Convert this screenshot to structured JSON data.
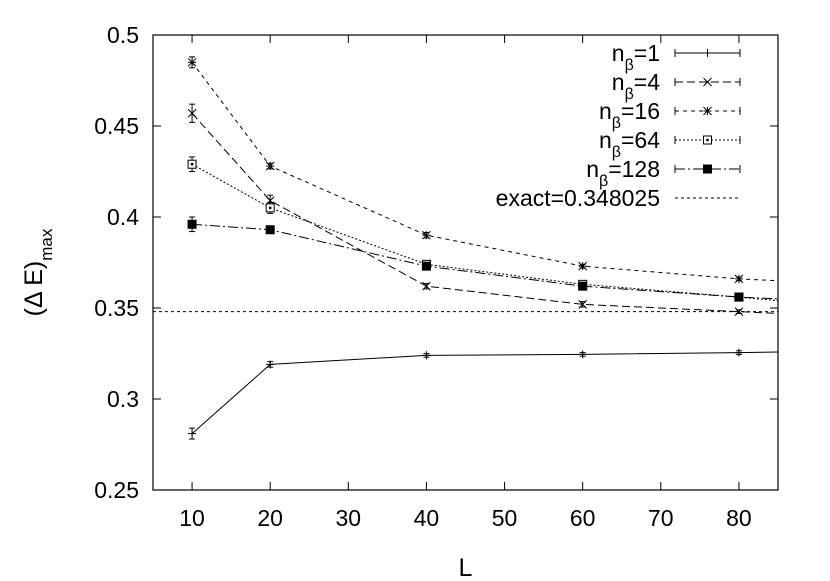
{
  "chart_data": {
    "type": "line",
    "title": "",
    "xlabel": "L",
    "ylabel": {
      "main": "(Δ E)",
      "sub": "max"
    },
    "xlim": [
      5,
      85
    ],
    "ylim": [
      0.25,
      0.5
    ],
    "xticks": [
      10,
      20,
      30,
      40,
      50,
      60,
      70,
      80
    ],
    "xtick_labels": [
      "10",
      "20",
      "30",
      "40",
      "50",
      "60",
      "70",
      "80"
    ],
    "yticks": [
      0.25,
      0.3,
      0.35,
      0.4,
      0.45,
      0.5
    ],
    "ytick_labels": [
      "0.25",
      "0.3",
      "0.35",
      "0.4",
      "0.45",
      "0.5"
    ],
    "grid": false,
    "legend_position": "top-right",
    "series": [
      {
        "name": "n_β=1",
        "label_main": "n",
        "label_sub": "β",
        "label_rest": "=1",
        "marker": "plus",
        "dash": "none",
        "x": [
          10,
          20,
          40,
          60,
          80,
          85
        ],
        "y": [
          0.281,
          0.319,
          0.324,
          0.3245,
          0.3255,
          0.3258
        ],
        "err": [
          0.003,
          0.0015,
          0.001,
          0.001,
          0.001,
          0
        ],
        "marker_mask": [
          true,
          true,
          true,
          true,
          true,
          false
        ]
      },
      {
        "name": "n_β=4",
        "label_main": "n",
        "label_sub": "β",
        "label_rest": "=4",
        "marker": "x",
        "dash": "8,4",
        "x": [
          10,
          20,
          40,
          60,
          80,
          85
        ],
        "y": [
          0.457,
          0.409,
          0.362,
          0.352,
          0.348,
          0.347
        ],
        "err": [
          0.005,
          0.003,
          0.0015,
          0.0015,
          0.001,
          0
        ],
        "marker_mask": [
          true,
          true,
          true,
          true,
          true,
          false
        ]
      },
      {
        "name": "n_β=16",
        "label_main": "n",
        "label_sub": "β",
        "label_rest": "=16",
        "marker": "star",
        "dash": "4,4",
        "x": [
          10,
          20,
          40,
          60,
          80,
          85
        ],
        "y": [
          0.485,
          0.428,
          0.39,
          0.373,
          0.366,
          0.365
        ],
        "err": [
          0.003,
          0.0015,
          0.0015,
          0.001,
          0.001,
          0
        ],
        "marker_mask": [
          true,
          true,
          true,
          true,
          true,
          false
        ]
      },
      {
        "name": "n_β=64",
        "label_main": "n",
        "label_sub": "β",
        "label_rest": "=64",
        "marker": "square-open",
        "dash": "2,2",
        "x": [
          10,
          20,
          40,
          60,
          80,
          85
        ],
        "y": [
          0.429,
          0.405,
          0.374,
          0.363,
          0.356,
          0.354
        ],
        "err": [
          0.004,
          0.003,
          0.0015,
          0.0015,
          0.001,
          0
        ],
        "marker_mask": [
          true,
          true,
          true,
          true,
          true,
          false
        ]
      },
      {
        "name": "n_β=128",
        "label_main": "n",
        "label_sub": "β",
        "label_rest": "=128",
        "marker": "square-filled",
        "dash": "10,3,2,3",
        "x": [
          10,
          20,
          40,
          60,
          80,
          85
        ],
        "y": [
          0.396,
          0.393,
          0.373,
          0.362,
          0.356,
          0.355
        ],
        "err": [
          0.004,
          0.0015,
          0.0015,
          0.0015,
          0.001,
          0
        ],
        "marker_mask": [
          true,
          true,
          true,
          true,
          true,
          false
        ]
      }
    ],
    "reference_line": {
      "name": "exact=0.348025",
      "label": "exact=0.348025",
      "y": 0.348025,
      "dash": "3,3"
    }
  }
}
